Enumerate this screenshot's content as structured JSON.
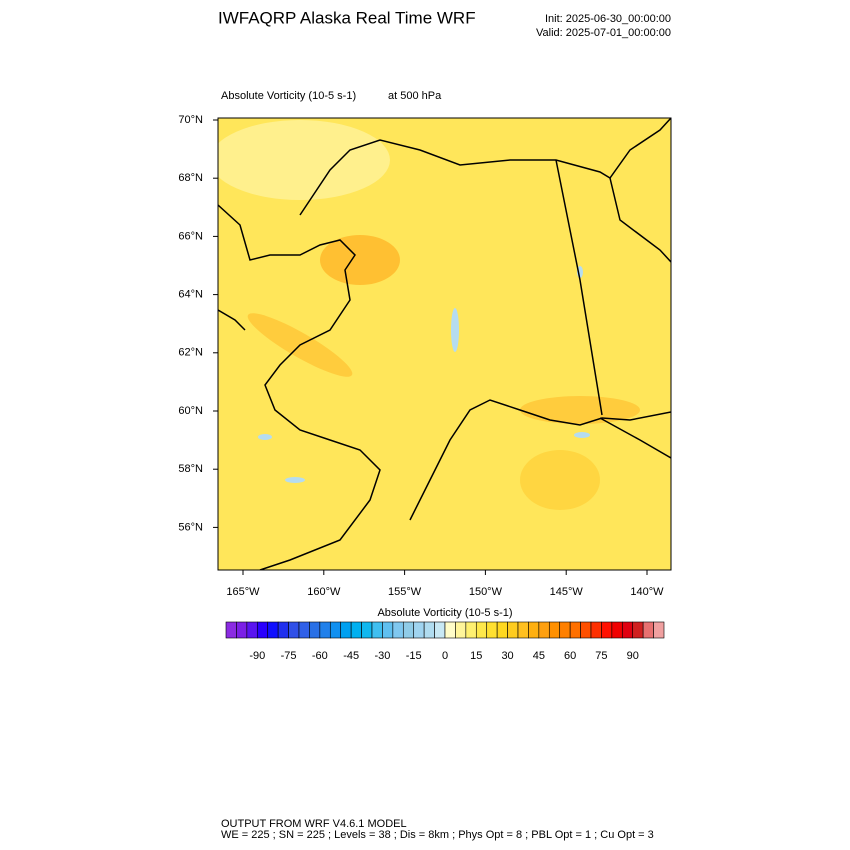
{
  "header": {
    "title": "IWFAQRP Alaska Real Time WRF",
    "init": "Init: 2025-06-30_00:00:00",
    "valid": "Valid: 2025-07-01_00:00:00"
  },
  "plot": {
    "field": "Absolute Vorticity   (10-5 s-1)",
    "level": "at   500 hPa",
    "lat_labels": [
      "70°N",
      "68°N",
      "66°N",
      "64°N",
      "62°N",
      "60°N",
      "58°N",
      "56°N"
    ],
    "lon_labels": [
      "165°W",
      "160°W",
      "155°W",
      "150°W",
      "145°W",
      "140°W"
    ]
  },
  "colorbar": {
    "title": "Absolute Vorticity  (10-5 s-1)",
    "labels": [
      "-90",
      "-75",
      "-60",
      "-45",
      "-30",
      "-15",
      "0",
      "15",
      "30",
      "45",
      "60",
      "75",
      "90"
    ],
    "colors": [
      "#8b2be2",
      "#7b1fe6",
      "#5a14f0",
      "#2a00ff",
      "#1010ff",
      "#2030ee",
      "#3050e8",
      "#3060e8",
      "#2a70e6",
      "#2080ea",
      "#1090f0",
      "#00a0f0",
      "#00b0f0",
      "#10b8f0",
      "#40bff0",
      "#60c0f0",
      "#80c8f0",
      "#90cce8",
      "#a0d4f0",
      "#b0dcf0",
      "#c8e8f4",
      "#fffcc8",
      "#fff59a",
      "#fff070",
      "#ffe84a",
      "#ffe030",
      "#ffd820",
      "#ffcc20",
      "#ffc020",
      "#ffb010",
      "#ffa010",
      "#ff9000",
      "#ff8000",
      "#ff7000",
      "#ff5000",
      "#ff3000",
      "#ff1000",
      "#f00000",
      "#e00010",
      "#d02020",
      "#e87070",
      "#f0a0a0"
    ]
  },
  "footer": {
    "line1": "OUTPUT FROM WRF V4.6.1 MODEL",
    "line2": "WE = 225 ; SN = 225 ; Levels = 38 ; Dis = 8km ; Phys Opt = 8 ; PBL Opt = 1 ; Cu Opt = 3"
  }
}
